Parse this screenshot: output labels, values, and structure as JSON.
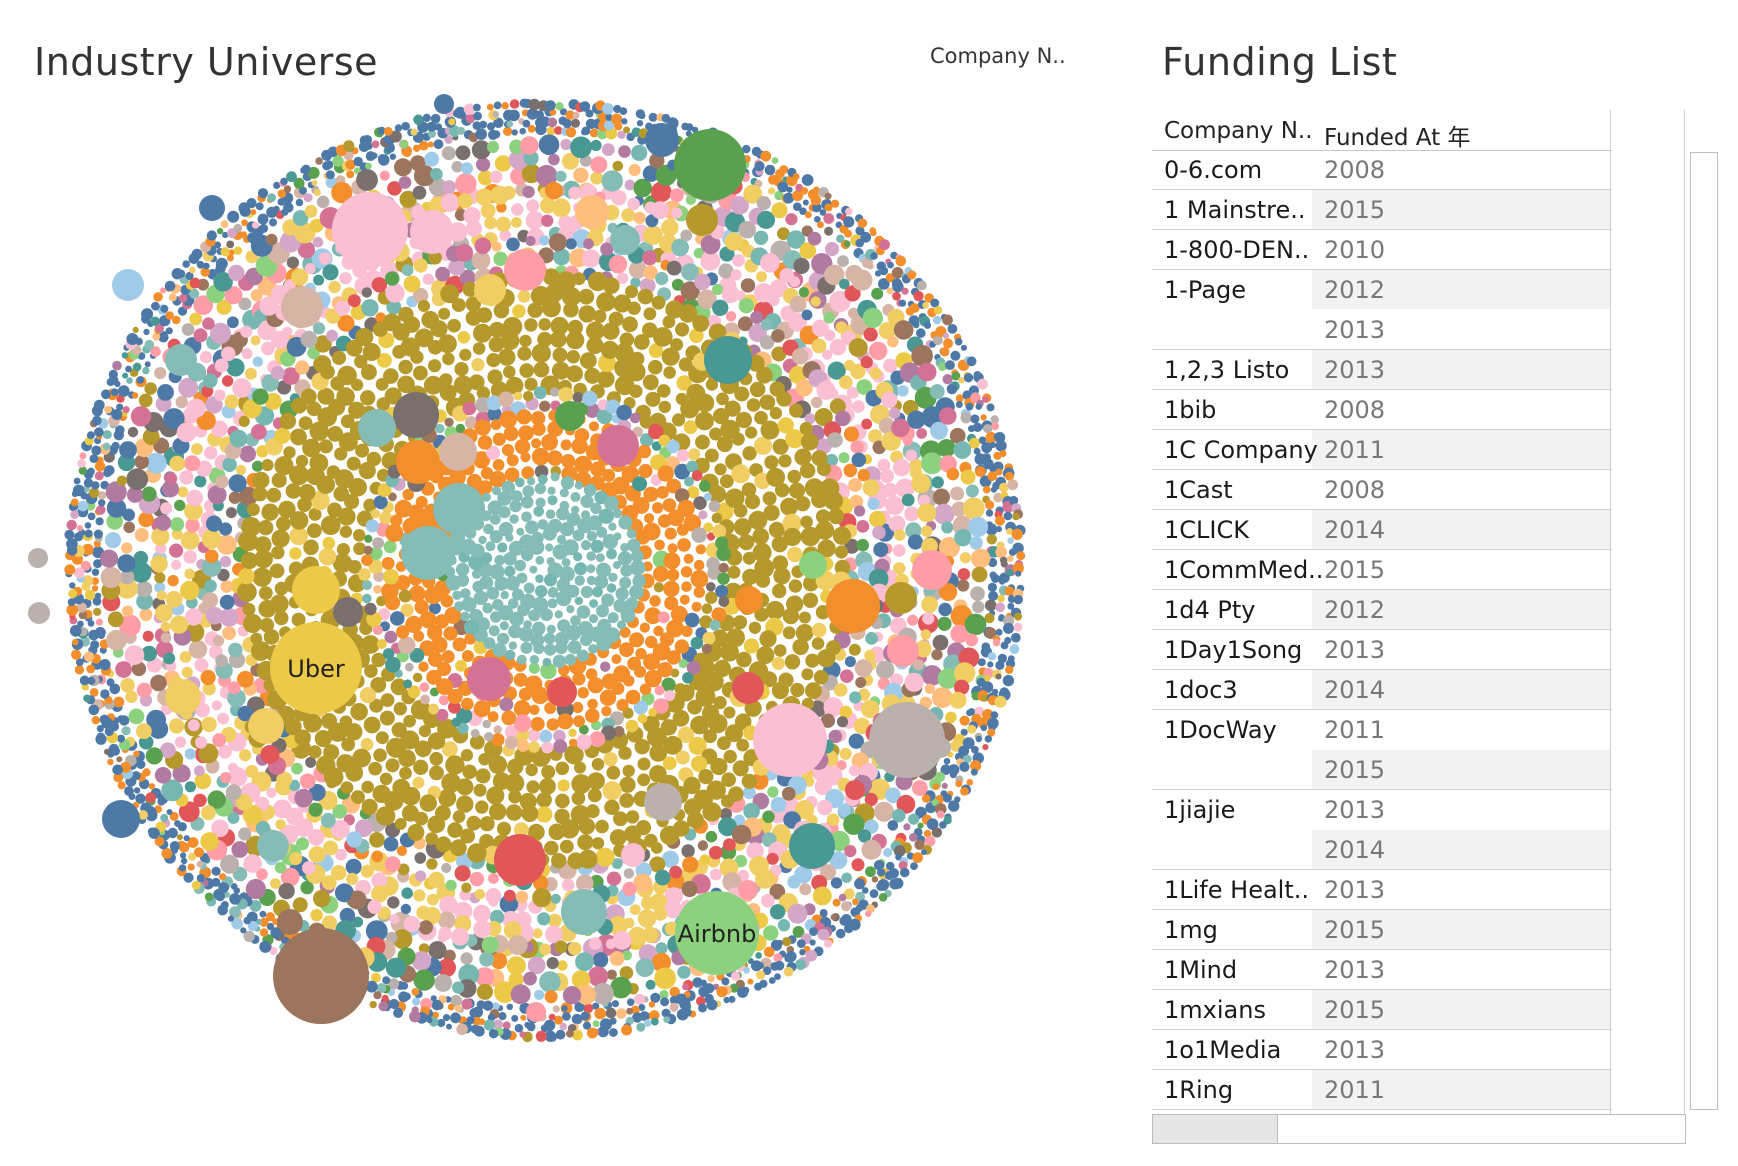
{
  "dashboard": {
    "universe_title": "Industry Universe",
    "legend_title": "Company N..",
    "funding_title": "Funding List"
  },
  "bubble_labels": [
    "Uber",
    "Airbnb"
  ],
  "palette": [
    "#4e79a7",
    "#f28e2b",
    "#e15759",
    "#76b7b2",
    "#59a14f",
    "#edc948",
    "#b07aa1",
    "#ff9da7",
    "#9c755f",
    "#bab0ac",
    "#b6992d",
    "#86bcb6",
    "#f1ce63",
    "#fabfd2",
    "#d37295",
    "#a0cbe8",
    "#8cd17d",
    "#ffbe7d",
    "#79706e",
    "#d4a6c8",
    "#499894",
    "#d7b5a6"
  ],
  "table": {
    "headers": [
      "Company N..",
      "Funded At 年"
    ],
    "rows": [
      {
        "company": "0-6.com",
        "year": "2008"
      },
      {
        "company": "1 Mainstre..",
        "year": "2015"
      },
      {
        "company": "1-800-DEN..",
        "year": "2010"
      },
      {
        "company": "1-Page",
        "year": "2012"
      },
      {
        "company": "",
        "year": "2013"
      },
      {
        "company": "1,2,3 Listo",
        "year": "2013"
      },
      {
        "company": "1bib",
        "year": "2008"
      },
      {
        "company": "1C Company",
        "year": "2011"
      },
      {
        "company": "1Cast",
        "year": "2008"
      },
      {
        "company": "1CLICK",
        "year": "2014"
      },
      {
        "company": "1CommMed..",
        "year": "2015"
      },
      {
        "company": "1d4 Pty",
        "year": "2012"
      },
      {
        "company": "1Day1Song",
        "year": "2013"
      },
      {
        "company": "1doc3",
        "year": "2014"
      },
      {
        "company": "1DocWay",
        "year": "2011"
      },
      {
        "company": "",
        "year": "2015"
      },
      {
        "company": "1jiajie",
        "year": "2013"
      },
      {
        "company": "",
        "year": "2014"
      },
      {
        "company": "1Life Healt..",
        "year": "2013"
      },
      {
        "company": "1mg",
        "year": "2015"
      },
      {
        "company": "1Mind",
        "year": "2013"
      },
      {
        "company": "1mxians",
        "year": "2015"
      },
      {
        "company": "1o1Media",
        "year": "2013"
      },
      {
        "company": "1Ring",
        "year": "2011"
      }
    ]
  }
}
